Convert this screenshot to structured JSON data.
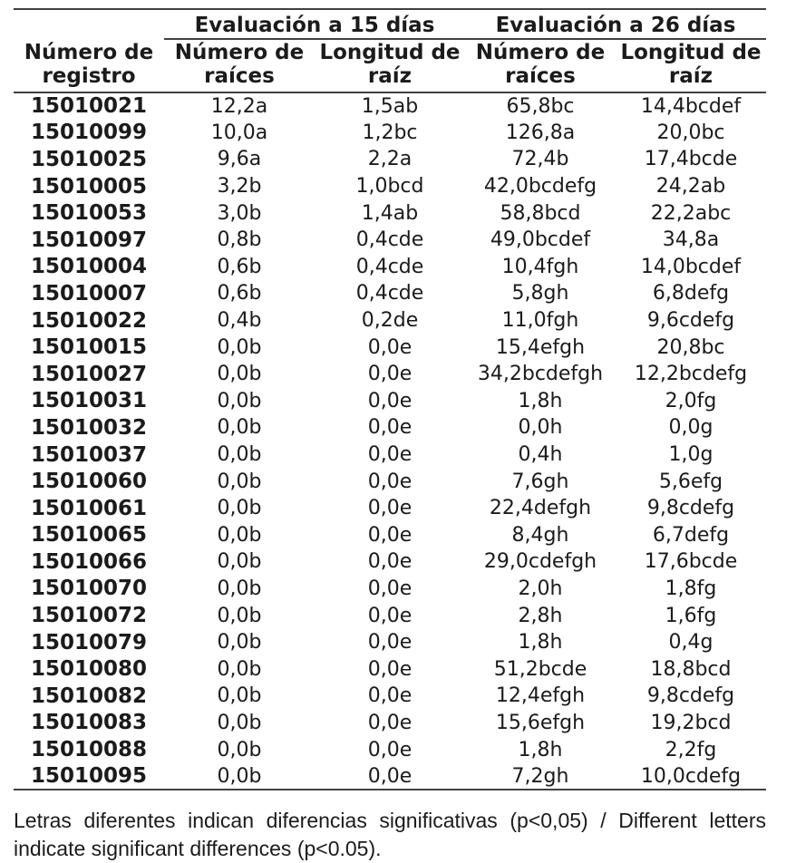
{
  "table": {
    "corner_label": "",
    "span_headers": [
      {
        "label": "Evaluación a 15 días"
      },
      {
        "label": "Evaluación a 26 días"
      }
    ],
    "col1_header": "Número de\nregistro",
    "sub_headers": [
      {
        "label": "Número de\nraíces"
      },
      {
        "label": "Longitud de\nraíz"
      },
      {
        "label": "Número de\nraíces"
      },
      {
        "label": "Longitud de\nraíz"
      }
    ],
    "rows": [
      {
        "reg": "15010021",
        "n15": "12,2a",
        "l15": "1,5ab",
        "n26": "65,8bc",
        "l26": "14,4bcdef"
      },
      {
        "reg": "15010099",
        "n15": "10,0a",
        "l15": "1,2bc",
        "n26": "126,8a",
        "l26": "20,0bc"
      },
      {
        "reg": "15010025",
        "n15": "9,6a",
        "l15": "2,2a",
        "n26": "72,4b",
        "l26": "17,4bcde"
      },
      {
        "reg": "15010005",
        "n15": "3,2b",
        "l15": "1,0bcd",
        "n26": "42,0bcdefg",
        "l26": "24,2ab"
      },
      {
        "reg": "15010053",
        "n15": "3,0b",
        "l15": "1,4ab",
        "n26": "58,8bcd",
        "l26": "22,2abc"
      },
      {
        "reg": "15010097",
        "n15": "0,8b",
        "l15": "0,4cde",
        "n26": "49,0bcdef",
        "l26": "34,8a"
      },
      {
        "reg": "15010004",
        "n15": "0,6b",
        "l15": "0,4cde",
        "n26": "10,4fgh",
        "l26": "14,0bcdef"
      },
      {
        "reg": "15010007",
        "n15": "0,6b",
        "l15": "0,4cde",
        "n26": "5,8gh",
        "l26": "6,8defg"
      },
      {
        "reg": "15010022",
        "n15": "0,4b",
        "l15": "0,2de",
        "n26": "11,0fgh",
        "l26": "9,6cdefg"
      },
      {
        "reg": "15010015",
        "n15": "0,0b",
        "l15": "0,0e",
        "n26": "15,4efgh",
        "l26": "20,8bc"
      },
      {
        "reg": "15010027",
        "n15": "0,0b",
        "l15": "0,0e",
        "n26": "34,2bcdefgh",
        "l26": "12,2bcdefg"
      },
      {
        "reg": "15010031",
        "n15": "0,0b",
        "l15": "0,0e",
        "n26": "1,8h",
        "l26": "2,0fg"
      },
      {
        "reg": "15010032",
        "n15": "0,0b",
        "l15": "0,0e",
        "n26": "0,0h",
        "l26": "0,0g"
      },
      {
        "reg": "15010037",
        "n15": "0,0b",
        "l15": "0,0e",
        "n26": "0,4h",
        "l26": "1,0g"
      },
      {
        "reg": "15010060",
        "n15": "0,0b",
        "l15": "0,0e",
        "n26": "7,6gh",
        "l26": "5,6efg"
      },
      {
        "reg": "15010061",
        "n15": "0,0b",
        "l15": "0,0e",
        "n26": "22,4defgh",
        "l26": "9,8cdefg"
      },
      {
        "reg": "15010065",
        "n15": "0,0b",
        "l15": "0,0e",
        "n26": "8,4gh",
        "l26": "6,7defg"
      },
      {
        "reg": "15010066",
        "n15": "0,0b",
        "l15": "0,0e",
        "n26": "29,0cdefgh",
        "l26": "17,6bcde"
      },
      {
        "reg": "15010070",
        "n15": "0,0b",
        "l15": "0,0e",
        "n26": "2,0h",
        "l26": "1,8fg"
      },
      {
        "reg": "15010072",
        "n15": "0,0b",
        "l15": "0,0e",
        "n26": "2,8h",
        "l26": "1,6fg"
      },
      {
        "reg": "15010079",
        "n15": "0,0b",
        "l15": "0,0e",
        "n26": "1,8h",
        "l26": "0,4g"
      },
      {
        "reg": "15010080",
        "n15": "0,0b",
        "l15": "0,0e",
        "n26": "51,2bcde",
        "l26": "18,8bcd"
      },
      {
        "reg": "15010082",
        "n15": "0,0b",
        "l15": "0,0e",
        "n26": "12,4efgh",
        "l26": "9,8cdefg"
      },
      {
        "reg": "15010083",
        "n15": "0,0b",
        "l15": "0,0e",
        "n26": "15,6efgh",
        "l26": "19,2bcd"
      },
      {
        "reg": "15010088",
        "n15": "0,0b",
        "l15": "0,0e",
        "n26": "1,8h",
        "l26": "2,2fg"
      },
      {
        "reg": "15010095",
        "n15": "0,0b",
        "l15": "0,0e",
        "n26": "7,2gh",
        "l26": "10,0cdefg"
      }
    ]
  },
  "footnote": "Letras diferentes indican diferencias significativas (p<0,05) /  Different letters indicate significant differences (p<0.05).",
  "colors": {
    "text": "#1b1b1b",
    "rule": "#414141",
    "background": "#ffffff"
  }
}
